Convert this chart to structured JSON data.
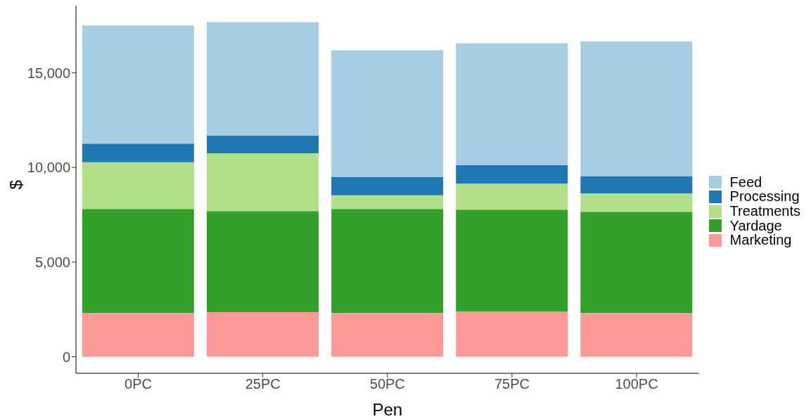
{
  "chart_data": {
    "type": "bar",
    "stacked": true,
    "xlabel": "Pen",
    "ylabel": "$",
    "categories": [
      "0PC",
      "25PC",
      "50PC",
      "75PC",
      "100PC"
    ],
    "series": [
      {
        "name": "Marketing",
        "color": "#fb9a99",
        "values": [
          2320,
          2360,
          2320,
          2400,
          2320
        ]
      },
      {
        "name": "Yardage",
        "color": "#33a02c",
        "values": [
          5490,
          5340,
          5490,
          5370,
          5340
        ]
      },
      {
        "name": "Treatments",
        "color": "#b2df8a",
        "values": [
          2470,
          3050,
          720,
          1380,
          980
        ]
      },
      {
        "name": "Processing",
        "color": "#1f78b4",
        "values": [
          980,
          940,
          980,
          980,
          910
        ]
      },
      {
        "name": "Feed",
        "color": "#a6cee3",
        "values": [
          6240,
          5990,
          6680,
          6430,
          7120
        ]
      }
    ],
    "ylim": [
      -870,
      18550
    ],
    "yticks": [
      {
        "value": 0,
        "label": "0"
      },
      {
        "value": 5000,
        "label": "5,000"
      },
      {
        "value": 10000,
        "label": "10,000"
      },
      {
        "value": 15000,
        "label": "15,000"
      }
    ],
    "grid": false,
    "legend": "right"
  }
}
